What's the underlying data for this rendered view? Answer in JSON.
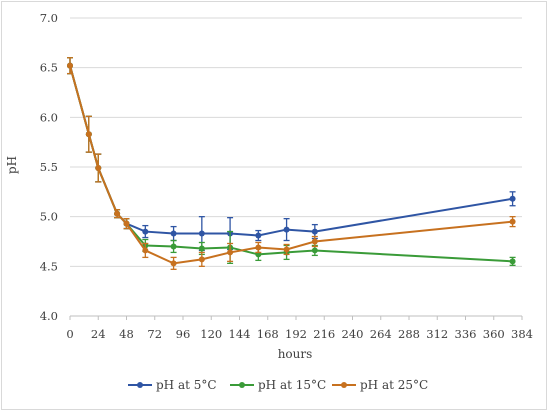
{
  "chart_data": {
    "type": "line",
    "xlabel": "hours",
    "ylabel": "pH",
    "xlim": [
      0,
      384
    ],
    "ylim": [
      4.0,
      7.0
    ],
    "x_ticks": [
      0,
      24,
      48,
      72,
      96,
      120,
      144,
      168,
      192,
      216,
      240,
      264,
      288,
      312,
      336,
      360,
      384
    ],
    "y_ticks": [
      "4.0",
      "4.5",
      "5.0",
      "5.5",
      "6.0",
      "6.5",
      "7.0"
    ],
    "grid": "horizontal",
    "legend_position": "bottom",
    "series": [
      {
        "name": "pH at 5°C",
        "color": "#2f55a4",
        "points": [
          {
            "x": 0,
            "y": 6.52,
            "err": 0.08
          },
          {
            "x": 16,
            "y": 5.83,
            "err": 0.18
          },
          {
            "x": 24,
            "y": 5.49,
            "err": 0.14
          },
          {
            "x": 40,
            "y": 5.03,
            "err": 0.04
          },
          {
            "x": 48,
            "y": 4.93,
            "err": 0.05
          },
          {
            "x": 64,
            "y": 4.85,
            "err": 0.06
          },
          {
            "x": 88,
            "y": 4.83,
            "err": 0.07
          },
          {
            "x": 112,
            "y": 4.83,
            "err": 0.17
          },
          {
            "x": 136,
            "y": 4.83,
            "err": 0.16
          },
          {
            "x": 160,
            "y": 4.81,
            "err": 0.05
          },
          {
            "x": 184,
            "y": 4.87,
            "err": 0.11
          },
          {
            "x": 208,
            "y": 4.85,
            "err": 0.07
          },
          {
            "x": 376,
            "y": 5.18,
            "err": 0.07
          }
        ]
      },
      {
        "name": "pH at 15°C",
        "color": "#3a9b38",
        "points": [
          {
            "x": 0,
            "y": 6.52,
            "err": 0.08
          },
          {
            "x": 16,
            "y": 5.83,
            "err": 0.18
          },
          {
            "x": 24,
            "y": 5.49,
            "err": 0.14
          },
          {
            "x": 40,
            "y": 5.03,
            "err": 0.04
          },
          {
            "x": 48,
            "y": 4.93,
            "err": 0.05
          },
          {
            "x": 64,
            "y": 4.71,
            "err": 0.06
          },
          {
            "x": 88,
            "y": 4.7,
            "err": 0.06
          },
          {
            "x": 112,
            "y": 4.68,
            "err": 0.06
          },
          {
            "x": 136,
            "y": 4.69,
            "err": 0.16
          },
          {
            "x": 160,
            "y": 4.62,
            "err": 0.06
          },
          {
            "x": 184,
            "y": 4.64,
            "err": 0.07
          },
          {
            "x": 208,
            "y": 4.66,
            "err": 0.05
          },
          {
            "x": 376,
            "y": 4.55,
            "err": 0.04
          }
        ]
      },
      {
        "name": "pH at 25°C",
        "color": "#c7711f",
        "points": [
          {
            "x": 0,
            "y": 6.52,
            "err": 0.08
          },
          {
            "x": 16,
            "y": 5.83,
            "err": 0.18
          },
          {
            "x": 24,
            "y": 5.49,
            "err": 0.14
          },
          {
            "x": 40,
            "y": 5.03,
            "err": 0.04
          },
          {
            "x": 48,
            "y": 4.93,
            "err": 0.05
          },
          {
            "x": 64,
            "y": 4.66,
            "err": 0.07
          },
          {
            "x": 88,
            "y": 4.53,
            "err": 0.06
          },
          {
            "x": 112,
            "y": 4.57,
            "err": 0.07
          },
          {
            "x": 136,
            "y": 4.64,
            "err": 0.09
          },
          {
            "x": 160,
            "y": 4.69,
            "err": 0.05
          },
          {
            "x": 184,
            "y": 4.67,
            "err": 0.05
          },
          {
            "x": 208,
            "y": 4.75,
            "err": 0.05
          },
          {
            "x": 376,
            "y": 4.95,
            "err": 0.05
          }
        ]
      }
    ]
  }
}
